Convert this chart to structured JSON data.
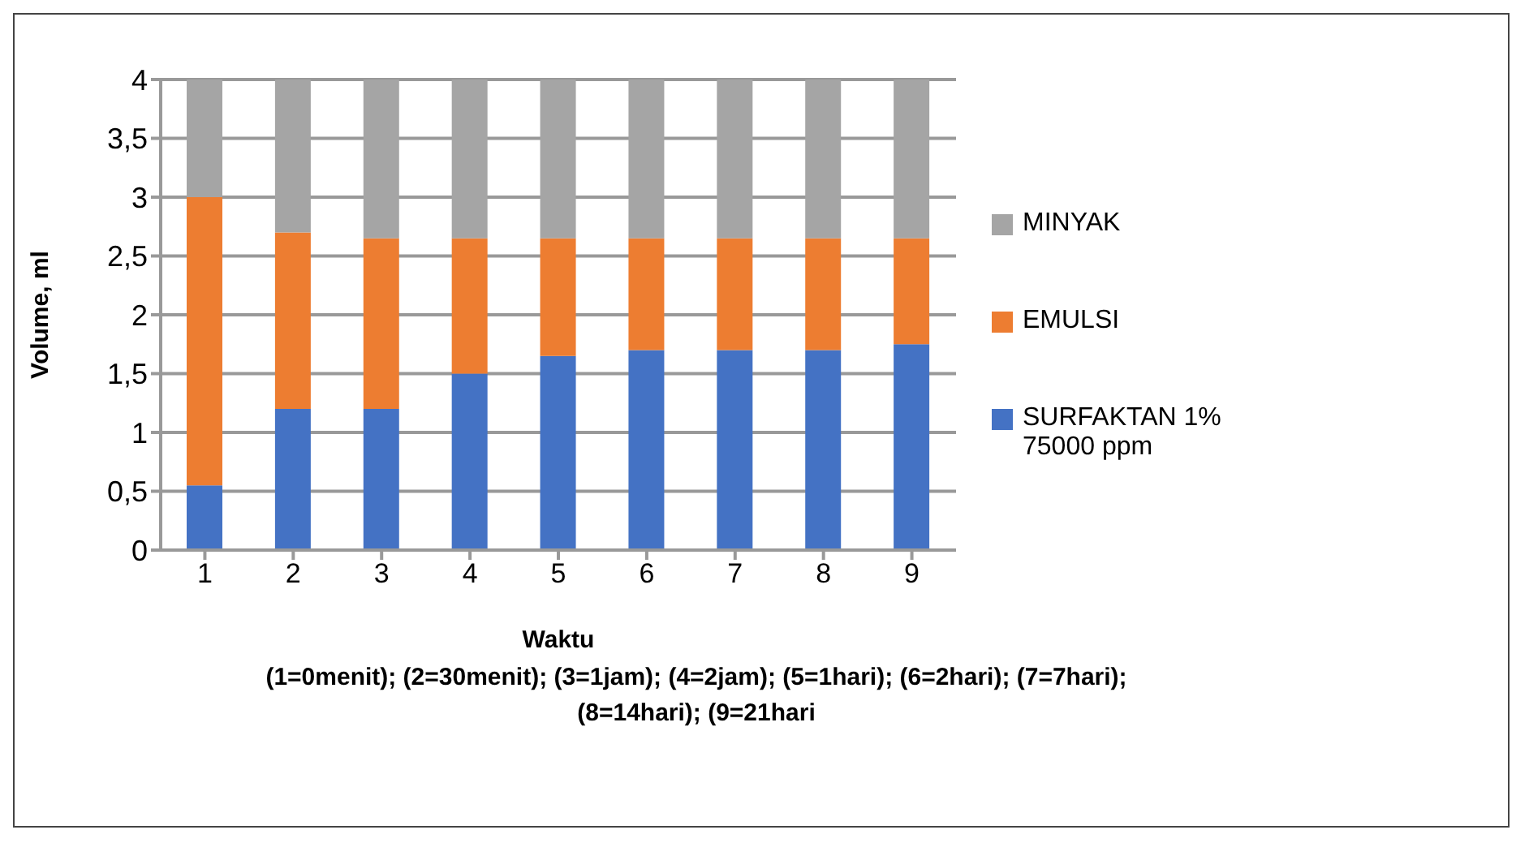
{
  "chart_data": {
    "type": "bar",
    "stacked": true,
    "xlabel": "Waktu",
    "ylabel": "Volume, ml",
    "annotations": [
      "(1=0menit); (2=30menit); (3=1jam); (4=2jam); (5=1hari); (6=2hari); (7=7hari); (8=14hari); (9=21hari"
    ],
    "categories": [
      "1",
      "2",
      "3",
      "4",
      "5",
      "6",
      "7",
      "8",
      "9"
    ],
    "series": [
      {
        "name": "SURFAKTAN 1% 75000 ppm",
        "color": "#4472c4",
        "values": [
          0.55,
          1.2,
          1.2,
          1.5,
          1.65,
          1.7,
          1.7,
          1.7,
          1.75
        ]
      },
      {
        "name": "EMULSI",
        "color": "#ed7d31",
        "values": [
          2.45,
          1.5,
          1.45,
          1.15,
          1.0,
          0.95,
          0.95,
          0.95,
          0.9
        ]
      },
      {
        "name": "MINYAK",
        "color": "#a5a5a5",
        "values": [
          1.0,
          1.3,
          1.35,
          1.35,
          1.35,
          1.35,
          1.35,
          1.35,
          1.35
        ]
      }
    ],
    "ylim": [
      0,
      4
    ],
    "yticks": [
      0,
      {
        "value": 0.5,
        "label": "0,5"
      },
      1,
      {
        "value": 1.5,
        "label": "1,5"
      },
      2,
      {
        "value": 2.5,
        "label": "2,5"
      },
      3,
      {
        "value": 3.5,
        "label": "3,5"
      },
      4
    ],
    "grid": "y",
    "legend": "right"
  }
}
